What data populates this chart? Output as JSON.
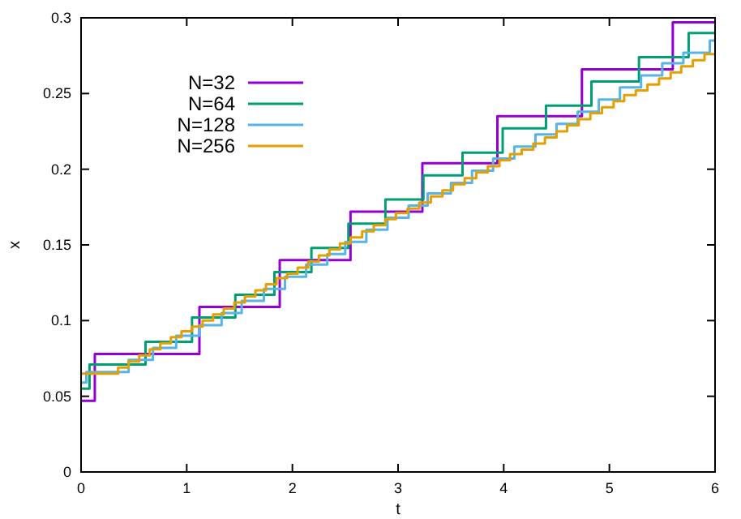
{
  "chart_data": {
    "type": "step",
    "xlabel": "t",
    "ylabel": "x",
    "xlim": [
      0,
      6
    ],
    "ylim": [
      0,
      0.3
    ],
    "xticks": [
      0,
      1,
      2,
      3,
      4,
      5,
      6
    ],
    "yticks": [
      0,
      0.05,
      0.1,
      0.15,
      0.2,
      0.25,
      0.3
    ],
    "grid": false,
    "legend": "top left",
    "line_style": "solid",
    "marker": "none",
    "series": [
      {
        "name": "N=32",
        "color": "#9400d3",
        "x": [
          0,
          0.13,
          1.12,
          1.88,
          2.55,
          3.23,
          3.94,
          4.74,
          5.6,
          6
        ],
        "values": [
          0.047,
          0.078,
          0.109,
          0.14,
          0.172,
          0.204,
          0.235,
          0.266,
          0.297,
          0.297
        ]
      },
      {
        "name": "N=64",
        "color": "#009e73",
        "x": [
          0,
          0.08,
          0.61,
          1.05,
          1.46,
          1.83,
          2.18,
          2.53,
          2.88,
          3.24,
          3.61,
          3.99,
          4.4,
          4.83,
          5.28,
          5.75,
          6
        ],
        "values": [
          0.055,
          0.071,
          0.086,
          0.102,
          0.117,
          0.132,
          0.148,
          0.164,
          0.18,
          0.196,
          0.211,
          0.227,
          0.242,
          0.258,
          0.274,
          0.29,
          0.29
        ]
      },
      {
        "name": "N=128",
        "color": "#56b4e9",
        "x": [
          0,
          0.05,
          0.45,
          0.68,
          0.9,
          1.12,
          1.33,
          1.52,
          1.73,
          1.93,
          2.13,
          2.33,
          2.5,
          2.7,
          2.9,
          3.1,
          3.28,
          3.5,
          3.7,
          3.9,
          4.1,
          4.3,
          4.5,
          4.7,
          4.9,
          5.1,
          5.3,
          5.5,
          5.7,
          5.95,
          6
        ],
        "values": [
          0.059,
          0.066,
          0.074,
          0.082,
          0.09,
          0.097,
          0.105,
          0.113,
          0.121,
          0.129,
          0.137,
          0.144,
          0.152,
          0.16,
          0.168,
          0.176,
          0.184,
          0.191,
          0.199,
          0.207,
          0.215,
          0.223,
          0.23,
          0.238,
          0.246,
          0.254,
          0.262,
          0.27,
          0.277,
          0.285,
          0.285
        ]
      },
      {
        "name": "N=256",
        "color": "#e69f00",
        "x": [
          0,
          0.35,
          0.45,
          0.55,
          0.65,
          0.75,
          0.85,
          0.95,
          1.05,
          1.15,
          1.25,
          1.35,
          1.45,
          1.55,
          1.65,
          1.75,
          1.85,
          1.95,
          2.05,
          2.15,
          2.25,
          2.35,
          2.45,
          2.55,
          2.66,
          2.77,
          2.88,
          2.98,
          3.09,
          3.2,
          3.31,
          3.42,
          3.52,
          3.63,
          3.74,
          3.85,
          3.96,
          4.06,
          4.17,
          4.28,
          4.39,
          4.5,
          4.6,
          4.71,
          4.82,
          4.93,
          5.04,
          5.14,
          5.25,
          5.36,
          5.47,
          5.58,
          5.68,
          5.79,
          5.9,
          6
        ],
        "values": [
          0.065,
          0.069,
          0.073,
          0.077,
          0.081,
          0.085,
          0.089,
          0.093,
          0.096,
          0.1,
          0.104,
          0.108,
          0.112,
          0.116,
          0.12,
          0.124,
          0.128,
          0.131,
          0.135,
          0.139,
          0.143,
          0.147,
          0.151,
          0.155,
          0.159,
          0.163,
          0.167,
          0.171,
          0.174,
          0.178,
          0.182,
          0.186,
          0.19,
          0.194,
          0.198,
          0.202,
          0.206,
          0.21,
          0.213,
          0.217,
          0.221,
          0.225,
          0.229,
          0.233,
          0.237,
          0.241,
          0.245,
          0.249,
          0.252,
          0.256,
          0.26,
          0.264,
          0.268,
          0.272,
          0.276,
          0.276
        ]
      }
    ]
  }
}
